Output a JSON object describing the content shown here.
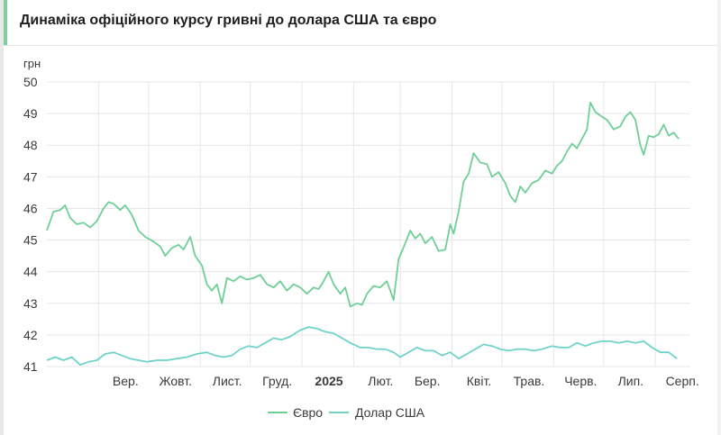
{
  "title": "Динаміка офіційного курсу гривні до долара США та євро",
  "chart_data": {
    "type": "line",
    "yunit": "грн",
    "ylim": [
      41,
      50
    ],
    "yticks": [
      41,
      42,
      43,
      44,
      45,
      46,
      47,
      48,
      49,
      50
    ],
    "grid": true,
    "legend_position": "bottom",
    "xlim": [
      "2024-08-01",
      "2025-08-22"
    ],
    "xticks": [
      {
        "date": "2024-09-01",
        "label": "Вер.",
        "bold": false
      },
      {
        "date": "2024-10-01",
        "label": "Жовт.",
        "bold": false
      },
      {
        "date": "2024-11-01",
        "label": "Лист.",
        "bold": false
      },
      {
        "date": "2024-12-01",
        "label": "Груд.",
        "bold": false
      },
      {
        "date": "2025-01-01",
        "label": "2025",
        "bold": true
      },
      {
        "date": "2025-02-01",
        "label": "Лют.",
        "bold": false
      },
      {
        "date": "2025-03-01",
        "label": "Бер.",
        "bold": false
      },
      {
        "date": "2025-04-01",
        "label": "Квіт.",
        "bold": false
      },
      {
        "date": "2025-05-01",
        "label": "Трав.",
        "bold": false
      },
      {
        "date": "2025-06-01",
        "label": "Черв.",
        "bold": false
      },
      {
        "date": "2025-07-01",
        "label": "Лип.",
        "bold": false
      },
      {
        "date": "2025-08-01",
        "label": "Серп.",
        "bold": false
      }
    ],
    "series": [
      {
        "name": "Євро",
        "color": "#6fcf97",
        "points": [
          [
            "2024-08-01",
            45.3
          ],
          [
            "2024-08-05",
            45.9
          ],
          [
            "2024-08-09",
            45.95
          ],
          [
            "2024-08-12",
            46.1
          ],
          [
            "2024-08-15",
            45.7
          ],
          [
            "2024-08-19",
            45.5
          ],
          [
            "2024-08-23",
            45.55
          ],
          [
            "2024-08-27",
            45.4
          ],
          [
            "2024-08-31",
            45.6
          ],
          [
            "2024-09-04",
            46.0
          ],
          [
            "2024-09-07",
            46.2
          ],
          [
            "2024-09-10",
            46.15
          ],
          [
            "2024-09-14",
            45.95
          ],
          [
            "2024-09-17",
            46.1
          ],
          [
            "2024-09-21",
            45.8
          ],
          [
            "2024-09-25",
            45.3
          ],
          [
            "2024-09-29",
            45.1
          ],
          [
            "2024-10-04",
            44.95
          ],
          [
            "2024-10-08",
            44.8
          ],
          [
            "2024-10-11",
            44.5
          ],
          [
            "2024-10-15",
            44.75
          ],
          [
            "2024-10-19",
            44.85
          ],
          [
            "2024-10-22",
            44.7
          ],
          [
            "2024-10-26",
            45.1
          ],
          [
            "2024-10-29",
            44.5
          ],
          [
            "2024-11-02",
            44.2
          ],
          [
            "2024-11-05",
            43.6
          ],
          [
            "2024-11-08",
            43.4
          ],
          [
            "2024-11-11",
            43.6
          ],
          [
            "2024-11-14",
            43.0
          ],
          [
            "2024-11-17",
            43.8
          ],
          [
            "2024-11-21",
            43.7
          ],
          [
            "2024-11-25",
            43.85
          ],
          [
            "2024-11-29",
            43.75
          ],
          [
            "2024-12-03",
            43.8
          ],
          [
            "2024-12-07",
            43.9
          ],
          [
            "2024-12-11",
            43.6
          ],
          [
            "2024-12-15",
            43.5
          ],
          [
            "2024-12-19",
            43.7
          ],
          [
            "2024-12-23",
            43.4
          ],
          [
            "2024-12-27",
            43.6
          ],
          [
            "2024-12-31",
            43.5
          ],
          [
            "2025-01-04",
            43.3
          ],
          [
            "2025-01-08",
            43.5
          ],
          [
            "2025-01-11",
            43.45
          ],
          [
            "2025-01-14",
            43.7
          ],
          [
            "2025-01-17",
            44.0
          ],
          [
            "2025-01-20",
            43.6
          ],
          [
            "2025-01-24",
            43.3
          ],
          [
            "2025-01-27",
            43.5
          ],
          [
            "2025-01-30",
            42.9
          ],
          [
            "2025-02-03",
            43.0
          ],
          [
            "2025-02-06",
            42.95
          ],
          [
            "2025-02-09",
            43.3
          ],
          [
            "2025-02-13",
            43.55
          ],
          [
            "2025-02-17",
            43.5
          ],
          [
            "2025-02-21",
            43.7
          ],
          [
            "2025-02-25",
            43.1
          ],
          [
            "2025-02-28",
            44.4
          ],
          [
            "2025-03-04",
            44.9
          ],
          [
            "2025-03-07",
            45.3
          ],
          [
            "2025-03-10",
            45.05
          ],
          [
            "2025-03-13",
            45.2
          ],
          [
            "2025-03-16",
            44.9
          ],
          [
            "2025-03-20",
            45.1
          ],
          [
            "2025-03-24",
            44.65
          ],
          [
            "2025-03-28",
            44.7
          ],
          [
            "2025-03-31",
            45.5
          ],
          [
            "2025-04-02",
            45.2
          ],
          [
            "2025-04-05",
            45.9
          ],
          [
            "2025-04-08",
            46.85
          ],
          [
            "2025-04-11",
            47.1
          ],
          [
            "2025-04-14",
            47.75
          ],
          [
            "2025-04-18",
            47.45
          ],
          [
            "2025-04-22",
            47.4
          ],
          [
            "2025-04-25",
            47.0
          ],
          [
            "2025-04-29",
            47.15
          ],
          [
            "2025-05-03",
            46.8
          ],
          [
            "2025-05-06",
            46.4
          ],
          [
            "2025-05-09",
            46.2
          ],
          [
            "2025-05-12",
            46.7
          ],
          [
            "2025-05-15",
            46.5
          ],
          [
            "2025-05-19",
            46.8
          ],
          [
            "2025-05-23",
            46.9
          ],
          [
            "2025-05-27",
            47.2
          ],
          [
            "2025-05-31",
            47.1
          ],
          [
            "2025-06-03",
            47.35
          ],
          [
            "2025-06-06",
            47.5
          ],
          [
            "2025-06-09",
            47.8
          ],
          [
            "2025-06-12",
            48.05
          ],
          [
            "2025-06-15",
            47.9
          ],
          [
            "2025-06-18",
            48.2
          ],
          [
            "2025-06-21",
            48.5
          ],
          [
            "2025-06-23",
            49.35
          ],
          [
            "2025-06-26",
            49.05
          ],
          [
            "2025-06-30",
            48.9
          ],
          [
            "2025-07-03",
            48.8
          ],
          [
            "2025-07-07",
            48.5
          ],
          [
            "2025-07-11",
            48.6
          ],
          [
            "2025-07-14",
            48.9
          ],
          [
            "2025-07-17",
            49.05
          ],
          [
            "2025-07-20",
            48.8
          ],
          [
            "2025-07-23",
            48.0
          ],
          [
            "2025-07-25",
            47.7
          ],
          [
            "2025-07-28",
            48.3
          ],
          [
            "2025-07-31",
            48.25
          ],
          [
            "2025-08-03",
            48.35
          ],
          [
            "2025-08-06",
            48.65
          ],
          [
            "2025-08-09",
            48.3
          ],
          [
            "2025-08-12",
            48.4
          ],
          [
            "2025-08-15",
            48.2
          ]
        ]
      },
      {
        "name": "Долар США",
        "color": "#6fd3c9",
        "points": [
          [
            "2024-08-01",
            41.2
          ],
          [
            "2024-08-06",
            41.3
          ],
          [
            "2024-08-11",
            41.2
          ],
          [
            "2024-08-16",
            41.3
          ],
          [
            "2024-08-21",
            41.05
          ],
          [
            "2024-08-26",
            41.15
          ],
          [
            "2024-08-31",
            41.2
          ],
          [
            "2024-09-05",
            41.4
          ],
          [
            "2024-09-10",
            41.45
          ],
          [
            "2024-09-15",
            41.35
          ],
          [
            "2024-09-20",
            41.25
          ],
          [
            "2024-09-25",
            41.2
          ],
          [
            "2024-09-30",
            41.15
          ],
          [
            "2024-10-06",
            41.2
          ],
          [
            "2024-10-12",
            41.2
          ],
          [
            "2024-10-18",
            41.25
          ],
          [
            "2024-10-24",
            41.3
          ],
          [
            "2024-10-30",
            41.4
          ],
          [
            "2024-11-05",
            41.45
          ],
          [
            "2024-11-10",
            41.35
          ],
          [
            "2024-11-15",
            41.3
          ],
          [
            "2024-11-20",
            41.35
          ],
          [
            "2024-11-25",
            41.55
          ],
          [
            "2024-11-30",
            41.65
          ],
          [
            "2024-12-05",
            41.6
          ],
          [
            "2024-12-10",
            41.75
          ],
          [
            "2024-12-15",
            41.9
          ],
          [
            "2024-12-20",
            41.85
          ],
          [
            "2024-12-25",
            41.95
          ],
          [
            "2024-12-31",
            42.15
          ],
          [
            "2025-01-05",
            42.25
          ],
          [
            "2025-01-10",
            42.2
          ],
          [
            "2025-01-15",
            42.1
          ],
          [
            "2025-01-20",
            42.05
          ],
          [
            "2025-01-25",
            41.9
          ],
          [
            "2025-01-30",
            41.75
          ],
          [
            "2025-02-05",
            41.6
          ],
          [
            "2025-02-10",
            41.6
          ],
          [
            "2025-02-15",
            41.55
          ],
          [
            "2025-02-20",
            41.55
          ],
          [
            "2025-02-25",
            41.45
          ],
          [
            "2025-03-01",
            41.3
          ],
          [
            "2025-03-06",
            41.45
          ],
          [
            "2025-03-11",
            41.6
          ],
          [
            "2025-03-16",
            41.5
          ],
          [
            "2025-03-21",
            41.5
          ],
          [
            "2025-03-26",
            41.35
          ],
          [
            "2025-03-31",
            41.45
          ],
          [
            "2025-04-05",
            41.25
          ],
          [
            "2025-04-10",
            41.4
          ],
          [
            "2025-04-15",
            41.55
          ],
          [
            "2025-04-20",
            41.7
          ],
          [
            "2025-04-25",
            41.65
          ],
          [
            "2025-04-30",
            41.55
          ],
          [
            "2025-05-05",
            41.5
          ],
          [
            "2025-05-10",
            41.55
          ],
          [
            "2025-05-15",
            41.55
          ],
          [
            "2025-05-20",
            41.5
          ],
          [
            "2025-05-25",
            41.55
          ],
          [
            "2025-05-31",
            41.65
          ],
          [
            "2025-06-05",
            41.6
          ],
          [
            "2025-06-10",
            41.6
          ],
          [
            "2025-06-15",
            41.75
          ],
          [
            "2025-06-20",
            41.65
          ],
          [
            "2025-06-25",
            41.75
          ],
          [
            "2025-06-30",
            41.8
          ],
          [
            "2025-07-05",
            41.8
          ],
          [
            "2025-07-10",
            41.75
          ],
          [
            "2025-07-15",
            41.8
          ],
          [
            "2025-07-20",
            41.75
          ],
          [
            "2025-07-25",
            41.8
          ],
          [
            "2025-07-30",
            41.6
          ],
          [
            "2025-08-04",
            41.45
          ],
          [
            "2025-08-09",
            41.45
          ],
          [
            "2025-08-14",
            41.25
          ]
        ]
      }
    ]
  }
}
